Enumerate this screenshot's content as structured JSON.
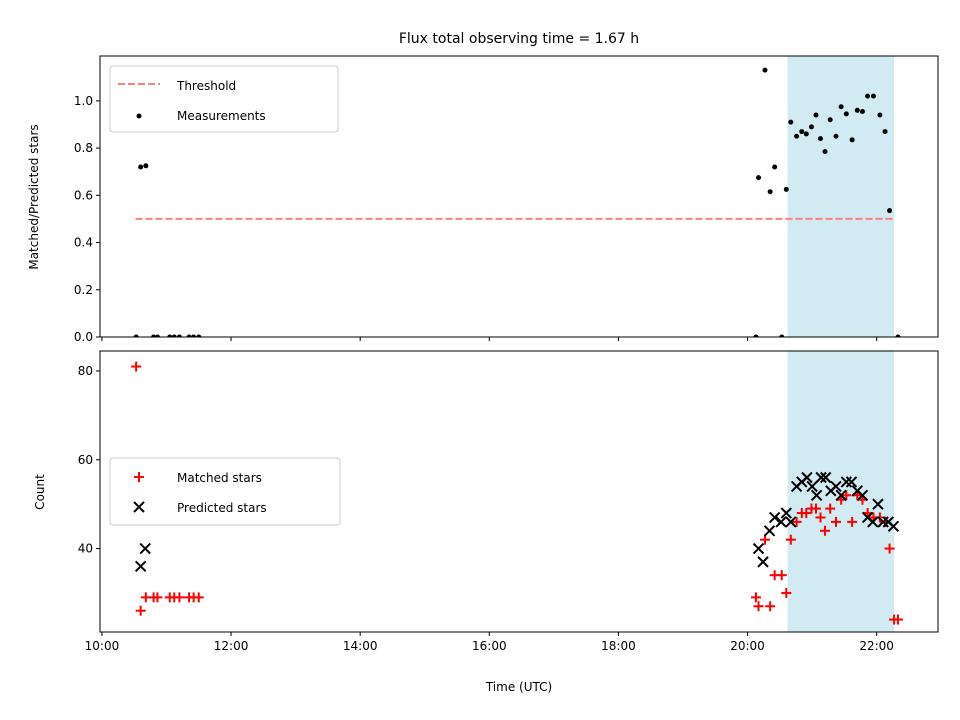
{
  "chart_data": {
    "type": "scatter",
    "title": "Flux total observing time = 1.67 h",
    "shared_x": {
      "xlabel": "Time (UTC)",
      "xlim": [
        9.97,
        22.95
      ],
      "x_ticks": [
        10,
        12,
        14,
        16,
        18,
        20,
        22
      ],
      "x_tick_labels": [
        "10:00",
        "12:00",
        "14:00",
        "16:00",
        "18:00",
        "20:00",
        "22:00"
      ],
      "highlight_span": [
        20.62,
        22.27
      ],
      "highlight_color": "#add8e6"
    },
    "panels": [
      {
        "ylabel": "Matched/Predicted stars",
        "ylim": [
          0,
          1.19
        ],
        "y_ticks": [
          0.0,
          0.2,
          0.4,
          0.6,
          0.8,
          1.0
        ],
        "y_tick_labels": [
          "0.0",
          "0.2",
          "0.4",
          "0.6",
          "0.8",
          "1.0"
        ],
        "legend_position": "upper-left",
        "threshold": {
          "name": "Threshold",
          "y": 0.5,
          "x_range": [
            10.52,
            22.27
          ],
          "color": "#ff7f7f",
          "style": "dashed"
        },
        "series": [
          {
            "name": "Measurements",
            "marker": "dot",
            "color": "#000000",
            "points": [
              [
                10.53,
                0.0
              ],
              [
                10.6,
                0.72
              ],
              [
                10.68,
                0.725
              ],
              [
                10.8,
                0.0
              ],
              [
                10.86,
                0.0
              ],
              [
                11.05,
                0.0
              ],
              [
                11.12,
                0.0
              ],
              [
                11.2,
                0.0
              ],
              [
                11.35,
                0.0
              ],
              [
                11.42,
                0.0
              ],
              [
                11.5,
                0.0
              ],
              [
                20.13,
                0.0
              ],
              [
                20.17,
                0.675
              ],
              [
                20.27,
                1.13
              ],
              [
                20.35,
                0.615
              ],
              [
                20.42,
                0.72
              ],
              [
                20.53,
                0.0
              ],
              [
                20.6,
                0.625
              ],
              [
                20.67,
                0.91
              ],
              [
                20.76,
                0.85
              ],
              [
                20.84,
                0.87
              ],
              [
                20.91,
                0.86
              ],
              [
                20.99,
                0.89
              ],
              [
                21.06,
                0.94
              ],
              [
                21.13,
                0.84
              ],
              [
                21.2,
                0.785
              ],
              [
                21.28,
                0.92
              ],
              [
                21.37,
                0.85
              ],
              [
                21.45,
                0.975
              ],
              [
                21.53,
                0.945
              ],
              [
                21.62,
                0.835
              ],
              [
                21.7,
                0.96
              ],
              [
                21.78,
                0.955
              ],
              [
                21.86,
                1.02
              ],
              [
                21.95,
                1.02
              ],
              [
                22.05,
                0.94
              ],
              [
                22.13,
                0.87
              ],
              [
                22.2,
                0.535
              ],
              [
                22.33,
                0.0
              ]
            ]
          }
        ]
      },
      {
        "ylabel": "Count",
        "ylim": [
          21.2,
          84.5
        ],
        "y_ticks": [
          40,
          60,
          80
        ],
        "y_tick_labels": [
          "40",
          "60",
          "80"
        ],
        "legend_position": "center-left",
        "series": [
          {
            "name": "Matched stars",
            "marker": "plus",
            "color": "#ff0000",
            "points": [
              [
                10.53,
                81
              ],
              [
                10.6,
                26
              ],
              [
                10.68,
                29
              ],
              [
                10.8,
                29
              ],
              [
                10.86,
                29
              ],
              [
                11.05,
                29
              ],
              [
                11.12,
                29
              ],
              [
                11.2,
                29
              ],
              [
                11.35,
                29
              ],
              [
                11.42,
                29
              ],
              [
                11.5,
                29
              ],
              [
                20.13,
                29
              ],
              [
                20.17,
                27
              ],
              [
                20.27,
                42
              ],
              [
                20.35,
                27
              ],
              [
                20.42,
                34
              ],
              [
                20.53,
                34
              ],
              [
                20.6,
                30
              ],
              [
                20.67,
                42
              ],
              [
                20.76,
                46
              ],
              [
                20.84,
                48
              ],
              [
                20.91,
                48
              ],
              [
                20.99,
                49
              ],
              [
                21.06,
                49
              ],
              [
                21.13,
                47
              ],
              [
                21.2,
                44
              ],
              [
                21.28,
                49
              ],
              [
                21.37,
                46
              ],
              [
                21.45,
                51
              ],
              [
                21.53,
                52
              ],
              [
                21.62,
                46
              ],
              [
                21.7,
                52
              ],
              [
                21.78,
                51
              ],
              [
                21.86,
                48
              ],
              [
                21.95,
                47
              ],
              [
                22.05,
                47
              ],
              [
                22.13,
                46
              ],
              [
                22.2,
                40
              ],
              [
                22.27,
                24
              ],
              [
                22.33,
                24
              ]
            ]
          },
          {
            "name": "Predicted stars",
            "marker": "x",
            "color": "#000000",
            "points": [
              [
                10.6,
                36
              ],
              [
                10.67,
                40
              ],
              [
                20.17,
                40
              ],
              [
                20.24,
                37
              ],
              [
                20.34,
                44
              ],
              [
                20.42,
                47
              ],
              [
                20.52,
                46
              ],
              [
                20.6,
                48
              ],
              [
                20.67,
                46
              ],
              [
                20.76,
                54
              ],
              [
                20.84,
                55
              ],
              [
                20.92,
                56
              ],
              [
                21.0,
                54
              ],
              [
                21.07,
                52
              ],
              [
                21.14,
                56
              ],
              [
                21.21,
                56
              ],
              [
                21.29,
                53
              ],
              [
                21.37,
                54
              ],
              [
                21.45,
                52
              ],
              [
                21.53,
                55
              ],
              [
                21.61,
                55
              ],
              [
                21.7,
                53
              ],
              [
                21.78,
                52
              ],
              [
                21.86,
                47
              ],
              [
                21.94,
                46
              ],
              [
                22.02,
                50
              ],
              [
                22.1,
                46
              ],
              [
                22.18,
                46
              ],
              [
                22.26,
                45
              ]
            ]
          }
        ]
      }
    ]
  }
}
